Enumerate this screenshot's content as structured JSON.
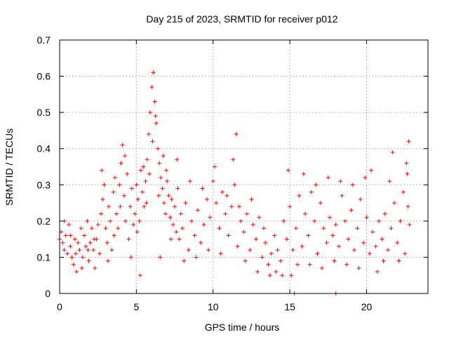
{
  "chart_data": {
    "type": "scatter",
    "title": "Day 215 of 2023, SRMTID for receiver p012",
    "xlabel": "GPS time / hours",
    "ylabel": "SRMTID / TECUs",
    "xlim": [
      0,
      24
    ],
    "ylim": [
      0,
      0.7
    ],
    "x_ticks": [
      0,
      5,
      10,
      15,
      20
    ],
    "x_tick_labels": [
      "0",
      "5",
      "10",
      "15",
      "20"
    ],
    "y_ticks": [
      0,
      0.1,
      0.2,
      0.3,
      0.4,
      0.5,
      0.6,
      0.7
    ],
    "y_tick_labels": [
      "0",
      "0.1",
      "0.2",
      "0.3",
      "0.4",
      "0.5",
      "0.6",
      "0.7"
    ],
    "grid": true,
    "marker": "plus",
    "color": "#ff0000",
    "series": [
      {
        "name": "SRMTID",
        "points": [
          [
            0.0,
            0.15
          ],
          [
            0.1,
            0.17
          ],
          [
            0.2,
            0.14
          ],
          [
            0.3,
            0.12
          ],
          [
            0.4,
            0.16
          ],
          [
            0.5,
            0.11
          ],
          [
            0.6,
            0.19
          ],
          [
            0.7,
            0.13
          ],
          [
            0.8,
            0.1
          ],
          [
            0.9,
            0.08
          ],
          [
            1.0,
            0.15
          ],
          [
            1.1,
            0.06
          ],
          [
            1.2,
            0.14
          ],
          [
            1.3,
            0.12
          ],
          [
            1.4,
            0.18
          ],
          [
            1.5,
            0.1
          ],
          [
            1.6,
            0.16
          ],
          [
            1.7,
            0.13
          ],
          [
            1.8,
            0.2
          ],
          [
            1.9,
            0.09
          ],
          [
            2.0,
            0.14
          ],
          [
            2.1,
            0.18
          ],
          [
            2.2,
            0.12
          ],
          [
            2.3,
            0.07
          ],
          [
            2.4,
            0.15
          ],
          [
            2.5,
            0.19
          ],
          [
            2.6,
            0.11
          ],
          [
            2.7,
            0.22
          ],
          [
            2.8,
            0.26
          ],
          [
            2.9,
            0.3
          ],
          [
            3.0,
            0.18
          ],
          [
            3.1,
            0.14
          ],
          [
            3.2,
            0.24
          ],
          [
            3.3,
            0.2
          ],
          [
            3.4,
            0.12
          ],
          [
            3.5,
            0.28
          ],
          [
            3.6,
            0.32
          ],
          [
            3.7,
            0.22
          ],
          [
            3.8,
            0.18
          ],
          [
            3.9,
            0.3
          ],
          [
            4.0,
            0.36
          ],
          [
            4.1,
            0.41
          ],
          [
            4.2,
            0.27
          ],
          [
            4.3,
            0.2
          ],
          [
            4.4,
            0.33
          ],
          [
            4.5,
            0.15
          ],
          [
            4.6,
            0.24
          ],
          [
            4.7,
            0.29
          ],
          [
            4.8,
            0.19
          ],
          [
            4.9,
            0.22
          ],
          [
            5.0,
            0.3
          ],
          [
            5.1,
            0.26
          ],
          [
            5.2,
            0.2
          ],
          [
            5.3,
            0.34
          ],
          [
            5.4,
            0.28
          ],
          [
            5.5,
            0.24
          ],
          [
            5.6,
            0.31
          ],
          [
            5.7,
            0.37
          ],
          [
            5.8,
            0.44
          ],
          [
            5.9,
            0.5
          ],
          [
            6.0,
            0.57
          ],
          [
            6.1,
            0.61
          ],
          [
            6.2,
            0.53
          ],
          [
            6.3,
            0.47
          ],
          [
            6.4,
            0.4
          ],
          [
            6.5,
            0.36
          ],
          [
            6.6,
            0.32
          ],
          [
            6.7,
            0.29
          ],
          [
            6.8,
            0.25
          ],
          [
            6.9,
            0.22
          ],
          [
            7.0,
            0.31
          ],
          [
            7.1,
            0.27
          ],
          [
            7.2,
            0.21
          ],
          [
            7.3,
            0.26
          ],
          [
            7.4,
            0.19
          ],
          [
            7.5,
            0.24
          ],
          [
            7.6,
            0.17
          ],
          [
            7.7,
            0.29
          ],
          [
            7.8,
            0.15
          ],
          [
            7.9,
            0.22
          ],
          [
            8.0,
            0.18
          ],
          [
            8.2,
            0.25
          ],
          [
            8.4,
            0.12
          ],
          [
            8.6,
            0.2
          ],
          [
            8.8,
            0.16
          ],
          [
            9.0,
            0.23
          ],
          [
            9.2,
            0.14
          ],
          [
            9.4,
            0.19
          ],
          [
            9.6,
            0.26
          ],
          [
            9.8,
            0.21
          ],
          [
            10.0,
            0.31
          ],
          [
            10.2,
            0.25
          ],
          [
            10.4,
            0.18
          ],
          [
            10.6,
            0.28
          ],
          [
            10.8,
            0.22
          ],
          [
            11.0,
            0.16
          ],
          [
            11.2,
            0.24
          ],
          [
            11.4,
            0.3
          ],
          [
            11.6,
            0.13
          ],
          [
            11.8,
            0.2
          ],
          [
            12.0,
            0.17
          ],
          [
            12.2,
            0.22
          ],
          [
            12.4,
            0.12
          ],
          [
            12.6,
            0.19
          ],
          [
            12.8,
            0.15
          ],
          [
            13.0,
            0.21
          ],
          [
            13.2,
            0.1
          ],
          [
            13.4,
            0.14
          ],
          [
            13.6,
            0.08
          ],
          [
            13.8,
            0.11
          ],
          [
            14.0,
            0.16
          ],
          [
            14.2,
            0.12
          ],
          [
            14.4,
            0.09
          ],
          [
            14.6,
            0.2
          ],
          [
            14.8,
            0.15
          ],
          [
            15.0,
            0.24
          ],
          [
            15.2,
            0.12
          ],
          [
            15.4,
            0.18
          ],
          [
            15.6,
            0.27
          ],
          [
            15.8,
            0.13
          ],
          [
            16.0,
            0.22
          ],
          [
            16.2,
            0.16
          ],
          [
            16.4,
            0.28
          ],
          [
            16.6,
            0.2
          ],
          [
            16.8,
            0.11
          ],
          [
            17.0,
            0.25
          ],
          [
            17.2,
            0.18
          ],
          [
            17.4,
            0.14
          ],
          [
            17.6,
            0.21
          ],
          [
            17.8,
            0.16
          ],
          [
            18.0,
            0.19
          ],
          [
            18.2,
            0.13
          ],
          [
            18.4,
            0.27
          ],
          [
            18.6,
            0.2
          ],
          [
            18.8,
            0.15
          ],
          [
            19.0,
            0.23
          ],
          [
            19.2,
            0.12
          ],
          [
            19.4,
            0.18
          ],
          [
            19.6,
            0.26
          ],
          [
            19.8,
            0.14
          ],
          [
            20.0,
            0.21
          ],
          [
            20.2,
            0.11
          ],
          [
            20.4,
            0.17
          ],
          [
            20.6,
            0.13
          ],
          [
            20.8,
            0.2
          ],
          [
            21.0,
            0.15
          ],
          [
            21.2,
            0.22
          ],
          [
            21.4,
            0.12
          ],
          [
            21.6,
            0.18
          ],
          [
            21.8,
            0.25
          ],
          [
            22.0,
            0.14
          ],
          [
            22.2,
            0.2
          ],
          [
            22.4,
            0.28
          ],
          [
            22.6,
            0.36
          ],
          [
            22.7,
            0.24
          ],
          [
            22.8,
            0.19
          ],
          [
            0.3,
            0.2
          ],
          [
            0.7,
            0.16
          ],
          [
            1.05,
            0.11
          ],
          [
            1.45,
            0.07
          ],
          [
            1.85,
            0.12
          ],
          [
            2.25,
            0.15
          ],
          [
            2.75,
            0.34
          ],
          [
            3.15,
            0.09
          ],
          [
            3.55,
            0.16
          ],
          [
            3.95,
            0.24
          ],
          [
            4.25,
            0.38
          ],
          [
            4.65,
            0.1
          ],
          [
            5.05,
            0.17
          ],
          [
            5.25,
            0.05
          ],
          [
            5.45,
            0.35
          ],
          [
            5.65,
            0.25
          ],
          [
            5.85,
            0.33
          ],
          [
            6.05,
            0.42
          ],
          [
            6.25,
            0.49
          ],
          [
            6.45,
            0.27
          ],
          [
            6.55,
            0.1
          ],
          [
            6.75,
            0.38
          ],
          [
            6.95,
            0.34
          ],
          [
            7.25,
            0.15
          ],
          [
            7.65,
            0.37
          ],
          [
            8.1,
            0.09
          ],
          [
            8.5,
            0.31
          ],
          [
            8.9,
            0.1
          ],
          [
            9.3,
            0.29
          ],
          [
            9.7,
            0.12
          ],
          [
            10.1,
            0.35
          ],
          [
            10.5,
            0.11
          ],
          [
            10.9,
            0.27
          ],
          [
            11.3,
            0.37
          ],
          [
            11.5,
            0.44
          ],
          [
            11.7,
            0.24
          ],
          [
            12.1,
            0.09
          ],
          [
            12.5,
            0.26
          ],
          [
            12.9,
            0.06
          ],
          [
            13.3,
            0.18
          ],
          [
            13.7,
            0.05
          ],
          [
            14.1,
            0.06
          ],
          [
            14.5,
            0.05
          ],
          [
            14.9,
            0.34
          ],
          [
            15.1,
            0.05
          ],
          [
            15.5,
            0.08
          ],
          [
            15.9,
            0.33
          ],
          [
            16.3,
            0.08
          ],
          [
            16.7,
            0.3
          ],
          [
            17.1,
            0.07
          ],
          [
            17.5,
            0.32
          ],
          [
            17.9,
            0.09
          ],
          [
            18.3,
            0.31
          ],
          [
            18.7,
            0.08
          ],
          [
            19.1,
            0.3
          ],
          [
            19.5,
            0.07
          ],
          [
            19.9,
            0.32
          ],
          [
            20.3,
            0.34
          ],
          [
            20.7,
            0.06
          ],
          [
            21.1,
            0.09
          ],
          [
            21.5,
            0.31
          ],
          [
            21.7,
            0.39
          ],
          [
            22.1,
            0.09
          ],
          [
            22.5,
            0.11
          ],
          [
            22.75,
            0.42
          ],
          [
            22.65,
            0.33
          ],
          [
            15.3,
            0.0
          ],
          [
            18.0,
            0.0
          ]
        ]
      }
    ]
  }
}
